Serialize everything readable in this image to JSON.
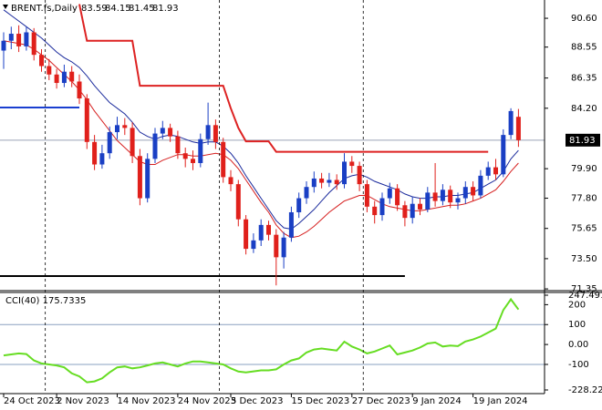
{
  "chart_data": [
    {
      "type": "candlestick",
      "symbol": "BRENT.fs,Daily",
      "categories": [
        "24 Oct 2023",
        null,
        null,
        null,
        null,
        null,
        null,
        "2 Nov 2023",
        null,
        null,
        null,
        null,
        null,
        null,
        null,
        "14 Nov 2023",
        null,
        null,
        null,
        null,
        null,
        null,
        null,
        "24 Nov 2023",
        null,
        null,
        null,
        null,
        null,
        null,
        "5 Dec 2023",
        null,
        null,
        null,
        null,
        null,
        null,
        null,
        "15 Dec 2023",
        null,
        null,
        null,
        null,
        null,
        null,
        null,
        "27 Dec 2023",
        null,
        null,
        null,
        null,
        null,
        null,
        null,
        "9 Jan 2024",
        null,
        null,
        null,
        null,
        null,
        null,
        null,
        "19 Jan 2024",
        null,
        null,
        null,
        null,
        null,
        null
      ],
      "open": [
        88.3,
        89.0,
        89.5,
        88.6,
        89.6,
        88.0,
        87.2,
        86.6,
        86.0,
        86.8,
        86.1,
        84.9,
        81.8,
        80.2,
        81.0,
        82.5,
        83.0,
        82.8,
        80.8,
        77.8,
        80.6,
        82.4,
        82.8,
        82.2,
        81.0,
        80.6,
        80.3,
        82.0,
        83.0,
        81.8,
        79.3,
        78.8,
        76.3,
        74.2,
        74.8,
        75.9,
        75.2,
        73.6,
        75.0,
        76.8,
        77.8,
        78.6,
        79.2,
        78.9,
        79.1,
        78.8,
        80.4,
        80.1,
        78.8,
        77.2,
        76.6,
        77.8,
        78.5,
        77.3,
        76.4,
        77.4,
        77.0,
        78.2,
        77.6,
        78.4,
        77.5,
        77.8,
        78.6,
        78.0,
        79.4,
        80.0,
        79.5,
        82.3,
        83.59
      ],
      "high": [
        89.6,
        90.0,
        90.1,
        90.0,
        89.9,
        88.4,
        87.7,
        87.0,
        87.3,
        87.2,
        86.6,
        85.2,
        82.3,
        81.6,
        82.9,
        83.6,
        83.5,
        83.2,
        81.3,
        81.0,
        82.8,
        83.3,
        83.1,
        82.6,
        81.4,
        81.2,
        82.4,
        84.6,
        83.4,
        82.1,
        79.8,
        79.1,
        76.6,
        75.3,
        76.3,
        76.2,
        75.6,
        75.4,
        77.2,
        78.2,
        79.0,
        79.7,
        79.6,
        79.6,
        79.5,
        81.0,
        80.8,
        80.4,
        79.1,
        77.6,
        78.2,
        78.9,
        78.8,
        77.6,
        77.9,
        77.8,
        78.6,
        80.3,
        78.8,
        78.7,
        78.2,
        79.0,
        79.0,
        79.8,
        80.4,
        80.6,
        82.7,
        84.2,
        84.15
      ],
      "low": [
        87.0,
        88.4,
        88.2,
        88.3,
        87.6,
        86.8,
        86.2,
        85.6,
        85.7,
        85.7,
        84.5,
        81.3,
        79.8,
        79.9,
        80.6,
        82.0,
        82.3,
        80.3,
        77.3,
        77.5,
        80.3,
        82.0,
        81.8,
        80.6,
        80.0,
        79.8,
        80.0,
        81.6,
        81.3,
        78.9,
        78.3,
        75.8,
        73.8,
        73.9,
        74.4,
        74.8,
        71.6,
        72.8,
        74.7,
        76.4,
        77.4,
        78.2,
        78.5,
        78.6,
        78.4,
        78.5,
        79.6,
        78.3,
        76.8,
        76.0,
        76.2,
        77.4,
        76.9,
        75.8,
        76.0,
        76.6,
        76.8,
        77.2,
        77.3,
        77.1,
        77.0,
        77.4,
        77.6,
        77.8,
        79.1,
        79.1,
        79.3,
        82.0,
        81.45
      ],
      "close": [
        89.0,
        89.5,
        88.6,
        89.6,
        88.0,
        87.2,
        86.6,
        86.0,
        86.8,
        86.1,
        84.9,
        81.8,
        80.2,
        81.0,
        82.5,
        83.0,
        82.8,
        80.8,
        77.8,
        80.6,
        82.4,
        82.8,
        82.2,
        81.0,
        80.6,
        80.3,
        82.0,
        83.0,
        81.8,
        79.3,
        78.8,
        76.3,
        74.2,
        74.8,
        75.9,
        75.2,
        73.6,
        75.0,
        76.8,
        77.8,
        78.6,
        79.2,
        78.9,
        79.1,
        78.8,
        80.4,
        80.1,
        78.8,
        77.2,
        76.6,
        77.8,
        78.5,
        77.3,
        76.4,
        77.4,
        77.0,
        78.2,
        77.6,
        78.4,
        77.5,
        77.8,
        78.6,
        78.0,
        79.4,
        80.0,
        79.5,
        82.3,
        84.0,
        81.93
      ],
      "up_color": "#1a3fc4",
      "down_color": "#e0201b",
      "fast_ma": {
        "color": "#1a2a9c",
        "values": [
          91.2,
          90.8,
          90.4,
          90.0,
          89.6,
          89.2,
          88.7,
          88.2,
          87.8,
          87.5,
          87.1,
          86.5,
          85.8,
          85.2,
          84.6,
          84.2,
          83.8,
          83.2,
          82.5,
          82.2,
          82.0,
          82.2,
          82.3,
          82.2,
          82.0,
          81.8,
          81.7,
          81.8,
          81.8,
          81.5,
          81.0,
          80.3,
          79.4,
          78.6,
          77.8,
          77.0,
          76.2,
          75.7,
          75.6,
          76.0,
          76.5,
          77.0,
          77.6,
          78.2,
          78.7,
          79.2,
          79.4,
          79.5,
          79.3,
          79.0,
          78.8,
          78.6,
          78.4,
          78.1,
          77.9,
          77.8,
          77.8,
          77.9,
          77.9,
          78.0,
          78.0,
          78.1,
          78.2,
          78.5,
          78.8,
          79.1,
          79.7,
          80.6,
          81.2
        ]
      },
      "slow_ma": {
        "color": "#d62020",
        "values": [
          89.0,
          88.9,
          88.8,
          88.7,
          88.4,
          88.0,
          87.6,
          87.1,
          86.6,
          86.1,
          85.5,
          84.8,
          84.0,
          83.3,
          82.6,
          81.9,
          81.4,
          80.9,
          80.4,
          80.2,
          80.2,
          80.5,
          80.7,
          80.9,
          80.9,
          80.8,
          80.8,
          80.9,
          81.0,
          80.9,
          80.5,
          79.9,
          79.1,
          78.3,
          77.5,
          76.8,
          75.9,
          75.3,
          75.0,
          75.1,
          75.4,
          75.8,
          76.3,
          76.8,
          77.2,
          77.6,
          77.8,
          78.0,
          78.0,
          77.7,
          77.4,
          77.2,
          77.1,
          77.0,
          76.9,
          76.9,
          77.0,
          77.1,
          77.2,
          77.3,
          77.3,
          77.4,
          77.6,
          77.8,
          78.1,
          78.4,
          79.0,
          79.7,
          80.3
        ]
      },
      "resistance": {
        "color": "#dd2222",
        "values": [
          null,
          null,
          null,
          null,
          null,
          null,
          null,
          null,
          null,
          null,
          91.6,
          89.0,
          89.0,
          89.0,
          89.0,
          89.0,
          89.0,
          89.0,
          85.8,
          85.8,
          85.8,
          85.8,
          85.8,
          85.8,
          85.8,
          85.8,
          85.8,
          85.8,
          85.8,
          85.8,
          84.2,
          82.8,
          81.85,
          81.85,
          81.85,
          81.85,
          81.1,
          81.1,
          81.1,
          81.1,
          81.1,
          81.1,
          81.1,
          81.1,
          81.1,
          81.1,
          81.1,
          81.1,
          81.1,
          81.1,
          81.1,
          81.1,
          81.1,
          81.1,
          81.1,
          81.1,
          81.1,
          81.1,
          81.1,
          81.1,
          81.1,
          81.1,
          81.1,
          81.1,
          81.1,
          null,
          null,
          null,
          null
        ]
      },
      "hlines": [
        {
          "value": 84.25,
          "from": 0,
          "to": 10,
          "color": "#1a3fd0"
        },
        {
          "value": 72.26,
          "from": 0,
          "to": 53,
          "color": "#000000"
        }
      ],
      "xgrid": [
        6,
        29,
        48
      ],
      "last_price": 81.93,
      "ylim": [
        71.29,
        91.9
      ],
      "yticks": [
        {
          "value": 90.6,
          "label": "90.60"
        },
        88.55,
        86.35,
        {
          "value": 84.2,
          "label": "84.20"
        },
        {
          "value": 79.9,
          "label": "79.90"
        },
        {
          "value": 77.8,
          "label": "77.80"
        },
        75.65,
        {
          "value": 73.5,
          "label": "73.50"
        },
        71.35
      ]
    },
    {
      "type": "line",
      "title": "CCI(40) 175.7335",
      "color": "#66dd22",
      "values": [
        -55,
        -50,
        -45,
        -48,
        -80,
        -95,
        -100,
        -105,
        -115,
        -145,
        -160,
        -190,
        -185,
        -170,
        -140,
        -115,
        -110,
        -120,
        -115,
        -105,
        -95,
        -90,
        -100,
        -110,
        -95,
        -85,
        -85,
        -90,
        -95,
        -100,
        -120,
        -136,
        -140,
        -135,
        -130,
        -130,
        -125,
        -100,
        -80,
        -70,
        -40,
        -25,
        -20,
        -25,
        -30,
        14,
        -10,
        -25,
        -45,
        -35,
        -20,
        -5,
        -50,
        -40,
        -30,
        -15,
        5,
        10,
        -10,
        -5,
        -8,
        15,
        25,
        40,
        60,
        80,
        173,
        227,
        175.7335
      ],
      "levels": [
        100,
        -100
      ],
      "ylim": [
        -228.222,
        247.4918
      ],
      "yticks": [
        247.4918,
        200,
        100,
        {
          "value": 0,
          "label": "0.00"
        },
        -100,
        -228.222
      ]
    }
  ]
}
